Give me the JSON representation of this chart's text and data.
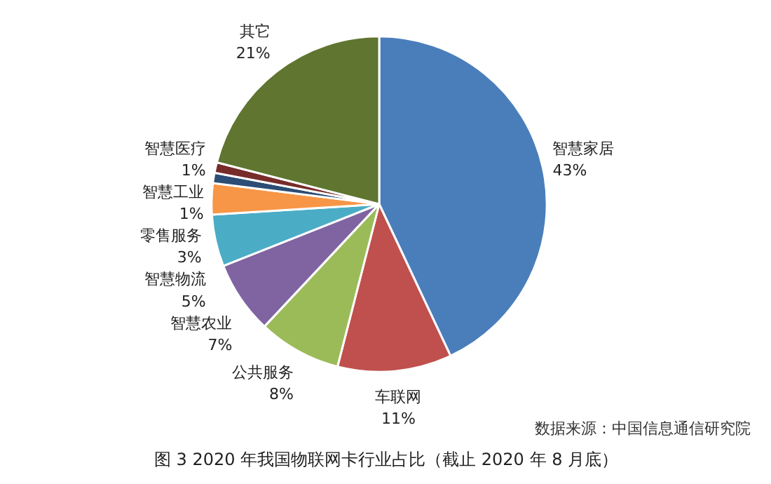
{
  "chart_data": {
    "type": "pie",
    "title": "图 3 2020 年我国物联网卡行业占比（截止 2020 年 8 月底）",
    "categories": [
      "智慧家居",
      "车联网",
      "公共服务",
      "智慧农业",
      "智慧物流",
      "零售服务",
      "智慧工业",
      "智慧医疗",
      "其它"
    ],
    "values": [
      43,
      11,
      8,
      7,
      5,
      3,
      1,
      1,
      21
    ],
    "colors": [
      "#4a7ebb",
      "#c0504d",
      "#9bbb59",
      "#8064a2",
      "#4bacc6",
      "#f79646",
      "#2c4d75",
      "#772c2a",
      "#5f7530"
    ],
    "value_labels": [
      "43%",
      "11%",
      "8%",
      "7%",
      "5%",
      "3%",
      "1%",
      "1%",
      "21%"
    ],
    "annotations": [
      "数据来源：中国信息通信研究院"
    ]
  }
}
